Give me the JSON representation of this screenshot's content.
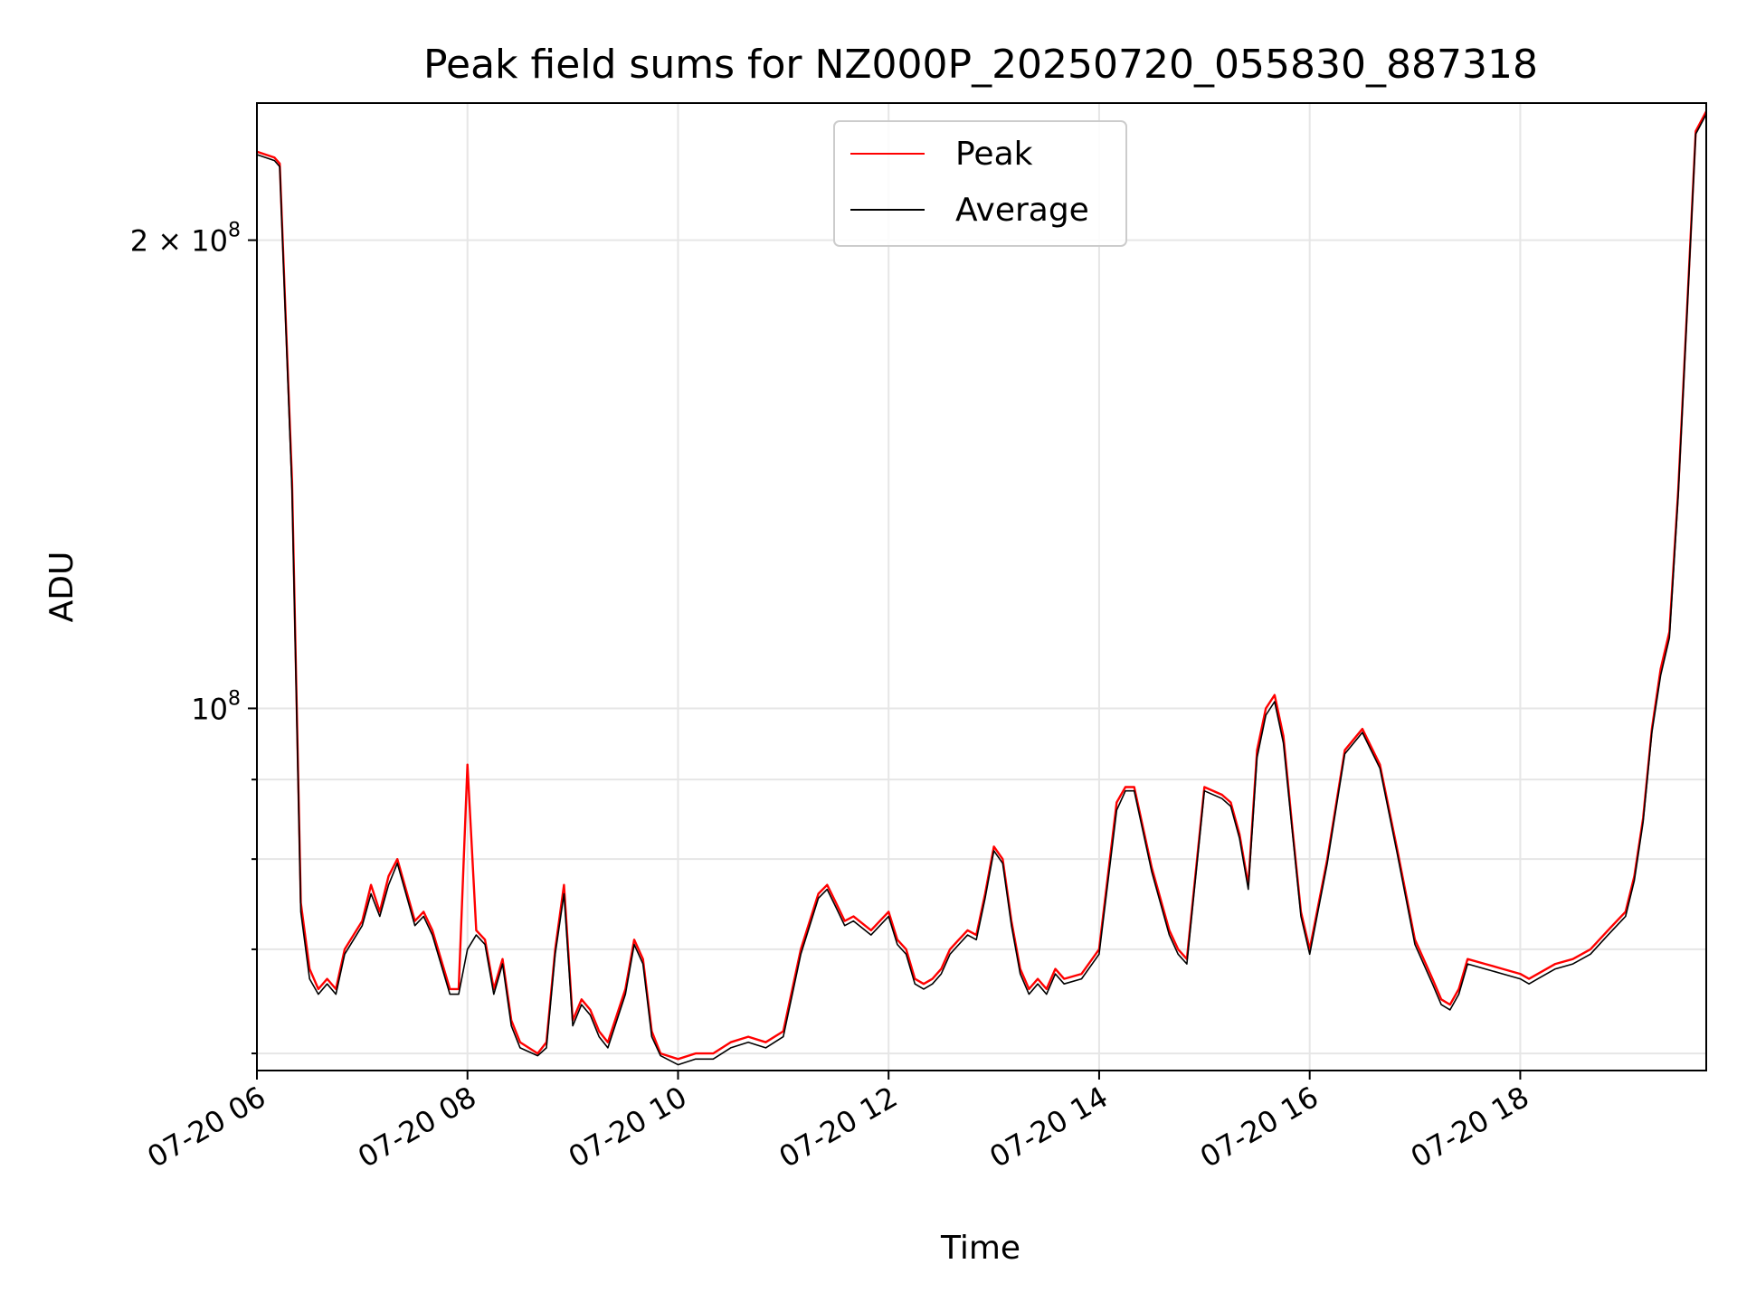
{
  "chart_data": {
    "type": "line",
    "title": "Peak field sums for NZ000P_20250720_055830_887318",
    "xlabel": "Time",
    "ylabel": "ADU",
    "yscale": "log",
    "grid": true,
    "legend_position": "top-center",
    "xlim": [
      "2025-07-20 06:00",
      "2025-07-20 19:46"
    ],
    "ylim": [
      58500000,
      245000000
    ],
    "x_ticks": [
      {
        "value": "2025-07-20 06:00",
        "label": "07-20 06"
      },
      {
        "value": "2025-07-20 08:00",
        "label": "07-20 08"
      },
      {
        "value": "2025-07-20 10:00",
        "label": "07-20 10"
      },
      {
        "value": "2025-07-20 12:00",
        "label": "07-20 12"
      },
      {
        "value": "2025-07-20 14:00",
        "label": "07-20 14"
      },
      {
        "value": "2025-07-20 16:00",
        "label": "07-20 16"
      },
      {
        "value": "2025-07-20 18:00",
        "label": "07-20 18"
      }
    ],
    "y_major_ticks": [
      {
        "value": 100000000,
        "base": "10",
        "exp": "8"
      },
      {
        "value": 200000000,
        "base": "2 × 10",
        "exp": "8"
      }
    ],
    "y_minor_ticks": [
      60000000,
      70000000,
      80000000,
      90000000
    ],
    "x": [
      "06:00",
      "06:10",
      "06:13",
      "06:20",
      "06:25",
      "06:30",
      "06:35",
      "06:40",
      "06:45",
      "06:50",
      "07:00",
      "07:05",
      "07:10",
      "07:15",
      "07:20",
      "07:30",
      "07:35",
      "07:40",
      "07:50",
      "07:55",
      "08:00",
      "08:05",
      "08:10",
      "08:15",
      "08:20",
      "08:25",
      "08:30",
      "08:40",
      "08:45",
      "08:50",
      "08:55",
      "09:00",
      "09:05",
      "09:10",
      "09:15",
      "09:20",
      "09:30",
      "09:35",
      "09:40",
      "09:45",
      "09:50",
      "10:00",
      "10:10",
      "10:20",
      "10:30",
      "10:40",
      "10:50",
      "11:00",
      "11:10",
      "11:20",
      "11:25",
      "11:30",
      "11:35",
      "11:40",
      "11:50",
      "12:00",
      "12:05",
      "12:10",
      "12:15",
      "12:20",
      "12:25",
      "12:30",
      "12:35",
      "12:40",
      "12:45",
      "12:50",
      "12:55",
      "13:00",
      "13:05",
      "13:10",
      "13:15",
      "13:20",
      "13:25",
      "13:30",
      "13:35",
      "13:40",
      "13:50",
      "14:00",
      "14:10",
      "14:15",
      "14:20",
      "14:30",
      "14:40",
      "14:45",
      "14:50",
      "15:00",
      "15:10",
      "15:15",
      "15:20",
      "15:25",
      "15:30",
      "15:35",
      "15:40",
      "15:45",
      "15:50",
      "15:55",
      "16:00",
      "16:10",
      "16:20",
      "16:30",
      "16:40",
      "16:50",
      "17:00",
      "17:10",
      "17:15",
      "17:20",
      "17:25",
      "17:30",
      "17:40",
      "17:50",
      "18:00",
      "18:05",
      "18:10",
      "18:20",
      "18:30",
      "18:40",
      "18:50",
      "19:00",
      "19:05",
      "19:10",
      "19:15",
      "19:20",
      "19:25",
      "19:30",
      "19:35",
      "19:40",
      "19:46"
    ],
    "series": [
      {
        "name": "Peak",
        "color": "#ff0000",
        "values": [
          228000000,
          226000000,
          224000000,
          140000000,
          75000000,
          68000000,
          66000000,
          67000000,
          66000000,
          70000000,
          73000000,
          77000000,
          74000000,
          78000000,
          80000000,
          73000000,
          74000000,
          72000000,
          66000000,
          66000000,
          92000000,
          72000000,
          71000000,
          66000000,
          69000000,
          63000000,
          61000000,
          60000000,
          61000000,
          70000000,
          77000000,
          63000000,
          65000000,
          64000000,
          62000000,
          61000000,
          66000000,
          71000000,
          69000000,
          62000000,
          60000000,
          59500000,
          60000000,
          60000000,
          61000000,
          61500000,
          61000000,
          62000000,
          70000000,
          76000000,
          77000000,
          75000000,
          73000000,
          73500000,
          72000000,
          74000000,
          71000000,
          70000000,
          67000000,
          66500000,
          67000000,
          68000000,
          70000000,
          71000000,
          72000000,
          71500000,
          76000000,
          81500000,
          80000000,
          73000000,
          68000000,
          66000000,
          67000000,
          66000000,
          68000000,
          67000000,
          67500000,
          70000000,
          87000000,
          89000000,
          89000000,
          79000000,
          72000000,
          70000000,
          69000000,
          89000000,
          88000000,
          87000000,
          83000000,
          77000000,
          94000000,
          100000000,
          102000000,
          96000000,
          84000000,
          74000000,
          70000000,
          80000000,
          94000000,
          97000000,
          92000000,
          81000000,
          71000000,
          67000000,
          65000000,
          64500000,
          66000000,
          69000000,
          68500000,
          68000000,
          67500000,
          67000000,
          67500000,
          68500000,
          69000000,
          70000000,
          72000000,
          74000000,
          78000000,
          85000000,
          97000000,
          106000000,
          112000000,
          138000000,
          180000000,
          235000000,
          242000000
        ]
      },
      {
        "name": "Average",
        "color": "#000000",
        "values": [
          227000000,
          225000000,
          223000000,
          138000000,
          74000000,
          67000000,
          65500000,
          66500000,
          65500000,
          69500000,
          72500000,
          76000000,
          73500000,
          77000000,
          79500000,
          72500000,
          73500000,
          71500000,
          65500000,
          65500000,
          70000000,
          71500000,
          70500000,
          65500000,
          68500000,
          62500000,
          60500000,
          59800000,
          60500000,
          69500000,
          76000000,
          62500000,
          64500000,
          63500000,
          61500000,
          60500000,
          65500000,
          70500000,
          68500000,
          61500000,
          59800000,
          59000000,
          59500000,
          59500000,
          60500000,
          61000000,
          60500000,
          61500000,
          69500000,
          75500000,
          76500000,
          74500000,
          72500000,
          73000000,
          71500000,
          73500000,
          70500000,
          69500000,
          66500000,
          66000000,
          66500000,
          67500000,
          69500000,
          70500000,
          71500000,
          71000000,
          75500000,
          81000000,
          79500000,
          72500000,
          67500000,
          65500000,
          66500000,
          65500000,
          67500000,
          66500000,
          67000000,
          69500000,
          86000000,
          88500000,
          88500000,
          78500000,
          71500000,
          69500000,
          68500000,
          88500000,
          87500000,
          86500000,
          82500000,
          76500000,
          93000000,
          99000000,
          101000000,
          95000000,
          83500000,
          73500000,
          69500000,
          79500000,
          93500000,
          96500000,
          91500000,
          80500000,
          70500000,
          66500000,
          64500000,
          64000000,
          65500000,
          68500000,
          68000000,
          67500000,
          67000000,
          66500000,
          67000000,
          68000000,
          68500000,
          69500000,
          71500000,
          73500000,
          77500000,
          84500000,
          96500000,
          105000000,
          111000000,
          137000000,
          179000000,
          234000000,
          241000000
        ]
      }
    ]
  }
}
